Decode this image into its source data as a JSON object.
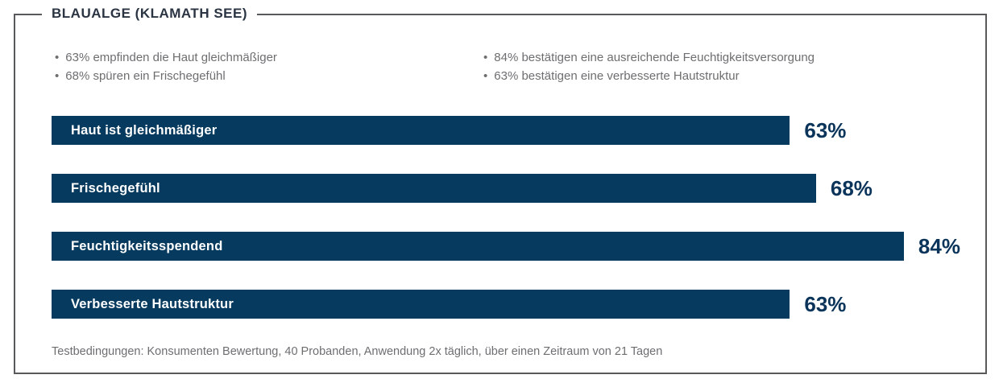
{
  "title": "BLAUALGE (KLAMATH SEE)",
  "bullet_char": "•",
  "bullets": {
    "left": [
      "63% empfinden die Haut gleichmäßiger",
      "68% spüren ein Frischegefühl"
    ],
    "right": [
      "84% bestätigen eine ausreichende Feuchtigkeitsversorgung",
      "63% bestätigen eine verbesserte Hautstruktur"
    ]
  },
  "chart_data": {
    "type": "bar",
    "orientation": "horizontal",
    "title": "BLAUALGE (KLAMATH SEE)",
    "categories": [
      "Haut ist gleichmäßiger",
      "Frischegefühl",
      "Feuchtigkeitsspendend",
      "Verbesserte Hautstruktur"
    ],
    "values": [
      63,
      68,
      84,
      63
    ],
    "value_labels": [
      "63%",
      "68%",
      "84%",
      "63%"
    ],
    "bar_widths_css": [
      "79%",
      "81.8%",
      "91.2%",
      "79%"
    ],
    "bar_color": "#063A5E",
    "bar_text_color": "#FFFFFF",
    "value_label_color": "#0B345A",
    "axis": "none",
    "grid": false,
    "legend": "none"
  },
  "footnote": "Testbedingungen: Konsumenten Bewertung, 40 Probanden, Anwendung 2x täglich, über einen Zeitraum von 21 Tagen",
  "colors": {
    "frame_border": "#58595B",
    "title_text": "#2A3442",
    "body_text": "#6D6E70",
    "background": "#FFFFFF"
  }
}
